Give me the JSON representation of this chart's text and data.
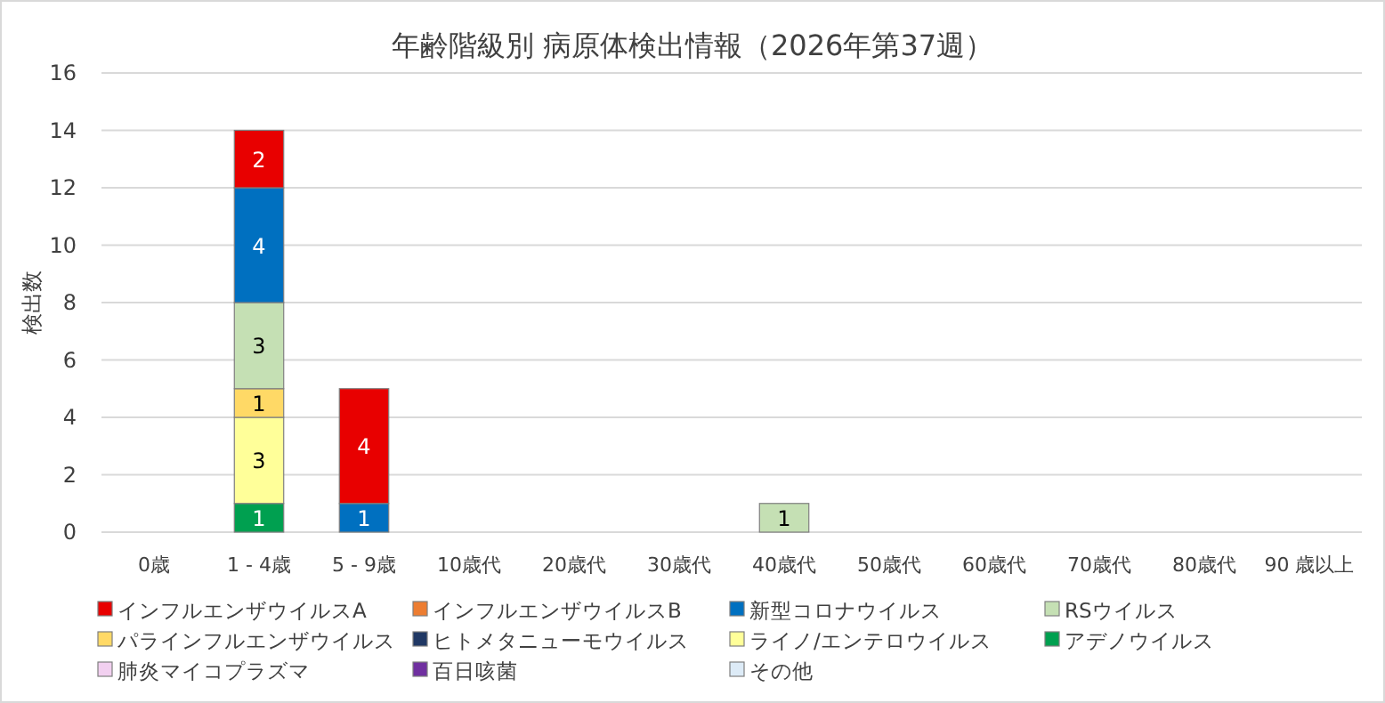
{
  "chart_data": {
    "type": "bar",
    "stacked": true,
    "title": "年齢階級別 病原体検出情報（2026年第37週）",
    "ylabel": "検出数",
    "categories": [
      "0歳",
      "1 - 4歳",
      "5 - 9歳",
      "10歳代",
      "20歳代",
      "30歳代",
      "40歳代",
      "50歳代",
      "60歳代",
      "70歳代",
      "80歳代",
      "90 歳以上"
    ],
    "ylim": [
      0,
      16
    ],
    "yticks": [
      0,
      2,
      4,
      6,
      8,
      10,
      12,
      14,
      16
    ],
    "grid": "y",
    "legend": "bottom",
    "data_labels": true,
    "series": [
      {
        "name": "その他",
        "color": "#ddebf7",
        "values": [
          null,
          null,
          null,
          null,
          null,
          null,
          null,
          null,
          null,
          null,
          null,
          null
        ]
      },
      {
        "name": "百日咳菌",
        "color": "#7030a0",
        "values": [
          null,
          null,
          null,
          null,
          null,
          null,
          null,
          null,
          null,
          null,
          null,
          null
        ]
      },
      {
        "name": "肺炎マイコプラズマ",
        "color": "#f2d0f0",
        "values": [
          null,
          null,
          null,
          null,
          null,
          null,
          null,
          null,
          null,
          null,
          null,
          null
        ]
      },
      {
        "name": "アデノウイルス",
        "color": "#00a050",
        "values": [
          null,
          1,
          null,
          null,
          null,
          null,
          null,
          null,
          null,
          null,
          null,
          null
        ]
      },
      {
        "name": "ライノ/エンテロウイルス",
        "color": "#ffff99",
        "values": [
          null,
          3,
          null,
          null,
          null,
          null,
          null,
          null,
          null,
          null,
          null,
          null
        ]
      },
      {
        "name": "ヒトメタニューモウイルス",
        "color": "#203864",
        "values": [
          null,
          null,
          null,
          null,
          null,
          null,
          null,
          null,
          null,
          null,
          null,
          null
        ]
      },
      {
        "name": "パラインフルエンザウイルス",
        "color": "#ffd966",
        "values": [
          null,
          1,
          null,
          null,
          null,
          null,
          null,
          null,
          null,
          null,
          null,
          null
        ]
      },
      {
        "name": "RSウイルス",
        "color": "#c5e0b4",
        "values": [
          null,
          3,
          null,
          null,
          null,
          null,
          1,
          null,
          null,
          null,
          null,
          null
        ]
      },
      {
        "name": "新型コロナウイルス",
        "color": "#0070c0",
        "values": [
          null,
          4,
          1,
          null,
          null,
          null,
          null,
          null,
          null,
          null,
          null,
          null
        ]
      },
      {
        "name": "インフルエンザウイルスB",
        "color": "#ed7d31",
        "values": [
          null,
          null,
          null,
          null,
          null,
          null,
          null,
          null,
          null,
          null,
          null,
          null
        ]
      },
      {
        "name": "インフルエンザウイルスA",
        "color": "#e80000",
        "values": [
          null,
          2,
          4,
          null,
          null,
          null,
          null,
          null,
          null,
          null,
          null,
          null
        ]
      }
    ]
  }
}
